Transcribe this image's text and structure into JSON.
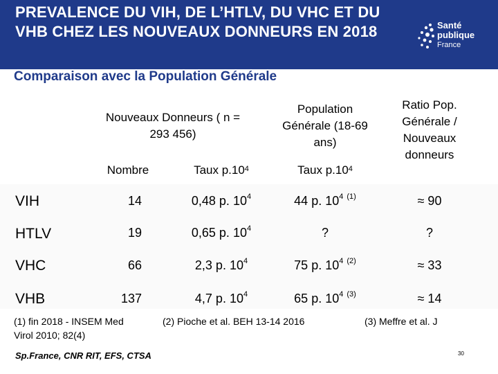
{
  "header": {
    "title": "PREVALENCE DU VIH, DE L’HTLV, DU VHC ET DU VHB CHEZ LES NOUVEAUX DONNEURS EN 2018",
    "logo_line1": "Santé",
    "logo_line2": "publique",
    "logo_line3": "France",
    "color": "#1f3a8a"
  },
  "subtitle": "Comparaison avec la Population Générale",
  "table": {
    "headers": {
      "group": "Nouveaux Donneurs ( n = 293 456)",
      "pop": "Population Générale (18-69 ans)",
      "ratio": "Ratio Pop. Générale / Nouveaux donneurs",
      "nombre": "Nombre",
      "taux": "Taux p.10",
      "taux_pop": "Taux p.10",
      "exp": "4"
    },
    "rows": [
      {
        "label": "VIH",
        "nombre": "14",
        "taux": "0,48 p. 10",
        "pop": "44 p. 10",
        "pop_ref": "(1)",
        "ratio": "≈ 90"
      },
      {
        "label": "HTLV",
        "nombre": "19",
        "taux": "0,65 p. 10",
        "pop": "?",
        "pop_ref": "",
        "ratio": "?"
      },
      {
        "label": "VHC",
        "nombre": "66",
        "taux": "2,3 p. 10",
        "pop": "75 p. 10",
        "pop_ref": "(2)",
        "ratio": "≈ 33"
      },
      {
        "label": "VHB",
        "nombre": "137",
        "taux": "4,7 p. 10",
        "pop": "65 p. 10",
        "pop_ref": "(3)",
        "ratio": "≈ 14"
      }
    ]
  },
  "footnotes": {
    "f1": "(1) fin 2018 - INSEM Med Virol 2010; 82(4)",
    "f2": "(2) Pioche et al. BEH 13-14 2016",
    "f3": "(3) Meffre et al. J"
  },
  "source": "Sp.France, CNR RIT, EFS, CTSA",
  "page_number": "30"
}
